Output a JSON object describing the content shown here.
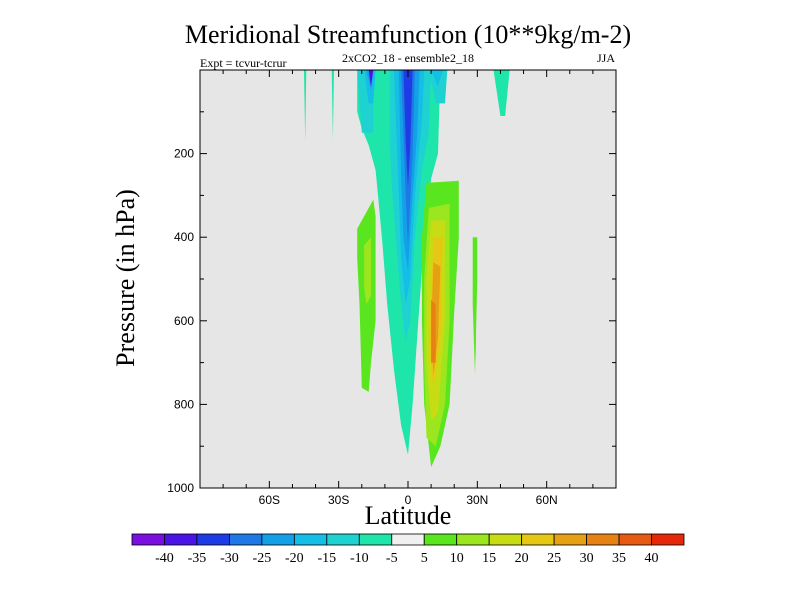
{
  "chart_data": {
    "type": "contour",
    "title": "Meridional Streamfunction (10**9kg/m-2)",
    "subtitle_left": "Expt = tcvur-tcrur",
    "subtitle_center": "2xCO2_18 - ensemble2_18",
    "subtitle_right": "JJA",
    "xlabel": "Latitude",
    "ylabel": "Pressure (in hPa)",
    "xlim": [
      -90,
      90
    ],
    "ylim": [
      1000,
      0
    ],
    "y_reversed": true,
    "x_ticks": [
      {
        "value": -60,
        "label": "60S"
      },
      {
        "value": -30,
        "label": "30S"
      },
      {
        "value": 0,
        "label": "0"
      },
      {
        "value": 30,
        "label": "30N"
      },
      {
        "value": 60,
        "label": "60N"
      }
    ],
    "y_ticks": [
      200,
      400,
      600,
      800,
      1000
    ],
    "background_color": "#e6e6e6",
    "colorbar": {
      "levels": [
        -40,
        -35,
        -30,
        -25,
        -20,
        -15,
        -10,
        -5,
        5,
        10,
        15,
        20,
        25,
        30,
        35,
        40
      ],
      "colors": [
        "#7a0fe0",
        "#4a14e6",
        "#1e3ce6",
        "#1e78e6",
        "#14a0e6",
        "#14bee6",
        "#1ed2d2",
        "#1ee6aa",
        "#f0f0f0",
        "#5ae61e",
        "#9be61e",
        "#c8dc14",
        "#e6c814",
        "#e6a014",
        "#e68214",
        "#e65a14",
        "#e6280a"
      ]
    },
    "regions": [
      {
        "value": -10,
        "points": [
          [
            -12,
            0
          ],
          [
            14,
            0
          ],
          [
            13,
            200
          ],
          [
            10,
            260
          ],
          [
            7,
            400
          ],
          [
            4,
            640
          ],
          [
            2,
            800
          ],
          [
            0,
            920
          ],
          [
            -3,
            850
          ],
          [
            -6,
            720
          ],
          [
            -9,
            560
          ],
          [
            -11,
            420
          ],
          [
            -13,
            300
          ],
          [
            -14,
            240
          ],
          [
            -17,
            180
          ],
          [
            -20,
            140
          ],
          [
            -22,
            100
          ],
          [
            -22,
            0
          ]
        ]
      },
      {
        "value": -15,
        "points": [
          [
            -22,
            0
          ],
          [
            -15,
            0
          ],
          [
            -15,
            150
          ],
          [
            -20,
            150
          ]
        ]
      },
      {
        "value": -15,
        "points": [
          [
            -8,
            0
          ],
          [
            10,
            0
          ],
          [
            9,
            150
          ],
          [
            6,
            240
          ],
          [
            3,
            400
          ],
          [
            1,
            600
          ],
          [
            -1,
            650
          ],
          [
            -3,
            560
          ],
          [
            -5,
            420
          ],
          [
            -7,
            280
          ],
          [
            -8,
            160
          ]
        ]
      },
      {
        "value": -20,
        "points": [
          [
            -6,
            0
          ],
          [
            7,
            0
          ],
          [
            6,
            120
          ],
          [
            3,
            300
          ],
          [
            1,
            500
          ],
          [
            -1,
            560
          ],
          [
            -3,
            450
          ],
          [
            -4,
            300
          ],
          [
            -5,
            150
          ]
        ]
      },
      {
        "value": -25,
        "points": [
          [
            -4,
            0
          ],
          [
            5,
            0
          ],
          [
            4,
            150
          ],
          [
            2,
            300
          ],
          [
            0,
            480
          ],
          [
            -2,
            400
          ],
          [
            -3,
            250
          ]
        ]
      },
      {
        "value": -30,
        "points": [
          [
            -3,
            0
          ],
          [
            3,
            0
          ],
          [
            2,
            200
          ],
          [
            0,
            420
          ],
          [
            -1,
            300
          ],
          [
            -2,
            150
          ]
        ]
      },
      {
        "value": -35,
        "points": [
          [
            -2,
            0
          ],
          [
            2,
            0
          ],
          [
            1,
            180
          ],
          [
            0,
            280
          ],
          [
            -1,
            170
          ]
        ]
      },
      {
        "value": -20,
        "points": [
          [
            -19,
            0
          ],
          [
            -14,
            0
          ],
          [
            -15,
            80
          ],
          [
            -17,
            80
          ]
        ]
      },
      {
        "value": -25,
        "points": [
          [
            -18,
            0
          ],
          [
            -15,
            0
          ],
          [
            -16,
            50
          ]
        ]
      },
      {
        "value": -40,
        "points": [
          [
            -17,
            0
          ],
          [
            -15,
            0
          ],
          [
            -16,
            40
          ]
        ]
      },
      {
        "value": -15,
        "points": [
          [
            9,
            0
          ],
          [
            17,
            0
          ],
          [
            16,
            80
          ],
          [
            12,
            80
          ]
        ]
      },
      {
        "value": -20,
        "points": [
          [
            10,
            0
          ],
          [
            15,
            0
          ],
          [
            13,
            40
          ]
        ]
      },
      {
        "value": -10,
        "points": [
          [
            -45,
            0
          ],
          [
            -44,
            0
          ],
          [
            -44.5,
            170
          ]
        ]
      },
      {
        "value": -10,
        "points": [
          [
            -33,
            0
          ],
          [
            -32,
            0
          ],
          [
            -32.5,
            165
          ]
        ]
      },
      {
        "value": -10,
        "points": [
          [
            37,
            0
          ],
          [
            44,
            0
          ],
          [
            42,
            110
          ],
          [
            40,
            110
          ]
        ]
      },
      {
        "value": 5,
        "points": [
          [
            -22,
            380
          ],
          [
            -15,
            310
          ],
          [
            -14,
            350
          ],
          [
            -14,
            600
          ],
          [
            -16,
            700
          ],
          [
            -17,
            770
          ],
          [
            -20,
            760
          ],
          [
            -21,
            560
          ],
          [
            -22,
            450
          ]
        ]
      },
      {
        "value": 10,
        "points": [
          [
            -19,
            420
          ],
          [
            -16,
            400
          ],
          [
            -16,
            540
          ],
          [
            -18,
            560
          ],
          [
            -19,
            520
          ]
        ]
      },
      {
        "value": 5,
        "points": [
          [
            8,
            270
          ],
          [
            22,
            265
          ],
          [
            22,
            400
          ],
          [
            20,
            580
          ],
          [
            18,
            800
          ],
          [
            14,
            900
          ],
          [
            10,
            950
          ],
          [
            7,
            800
          ],
          [
            6,
            600
          ],
          [
            6,
            400
          ]
        ]
      },
      {
        "value": 10,
        "points": [
          [
            9,
            330
          ],
          [
            18,
            320
          ],
          [
            18,
            600
          ],
          [
            16,
            800
          ],
          [
            12,
            900
          ],
          [
            8,
            880
          ],
          [
            7,
            700
          ],
          [
            7,
            500
          ]
        ]
      },
      {
        "value": 15,
        "points": [
          [
            10,
            360
          ],
          [
            16,
            360
          ],
          [
            16,
            600
          ],
          [
            13,
            820
          ],
          [
            10,
            840
          ],
          [
            8,
            700
          ],
          [
            8,
            500
          ]
        ]
      },
      {
        "value": 20,
        "points": [
          [
            11,
            400
          ],
          [
            15,
            400
          ],
          [
            14,
            650
          ],
          [
            11,
            760
          ],
          [
            9,
            650
          ]
        ]
      },
      {
        "value": 25,
        "points": [
          [
            11,
            460
          ],
          [
            14,
            470
          ],
          [
            13,
            640
          ],
          [
            11,
            730
          ],
          [
            10,
            620
          ]
        ]
      },
      {
        "value": 30,
        "points": [
          [
            10,
            550
          ],
          [
            12,
            560
          ],
          [
            12,
            700
          ],
          [
            10,
            700
          ]
        ]
      },
      {
        "value": 5,
        "points": [
          [
            28,
            400
          ],
          [
            30,
            400
          ],
          [
            30,
            500
          ],
          [
            29,
            730
          ],
          [
            28,
            560
          ]
        ]
      },
      {
        "value": 5,
        "points": [
          [
            29,
            420
          ],
          [
            29.5,
            440
          ],
          [
            29.3,
            700
          ],
          [
            28.8,
            520
          ]
        ]
      }
    ]
  }
}
